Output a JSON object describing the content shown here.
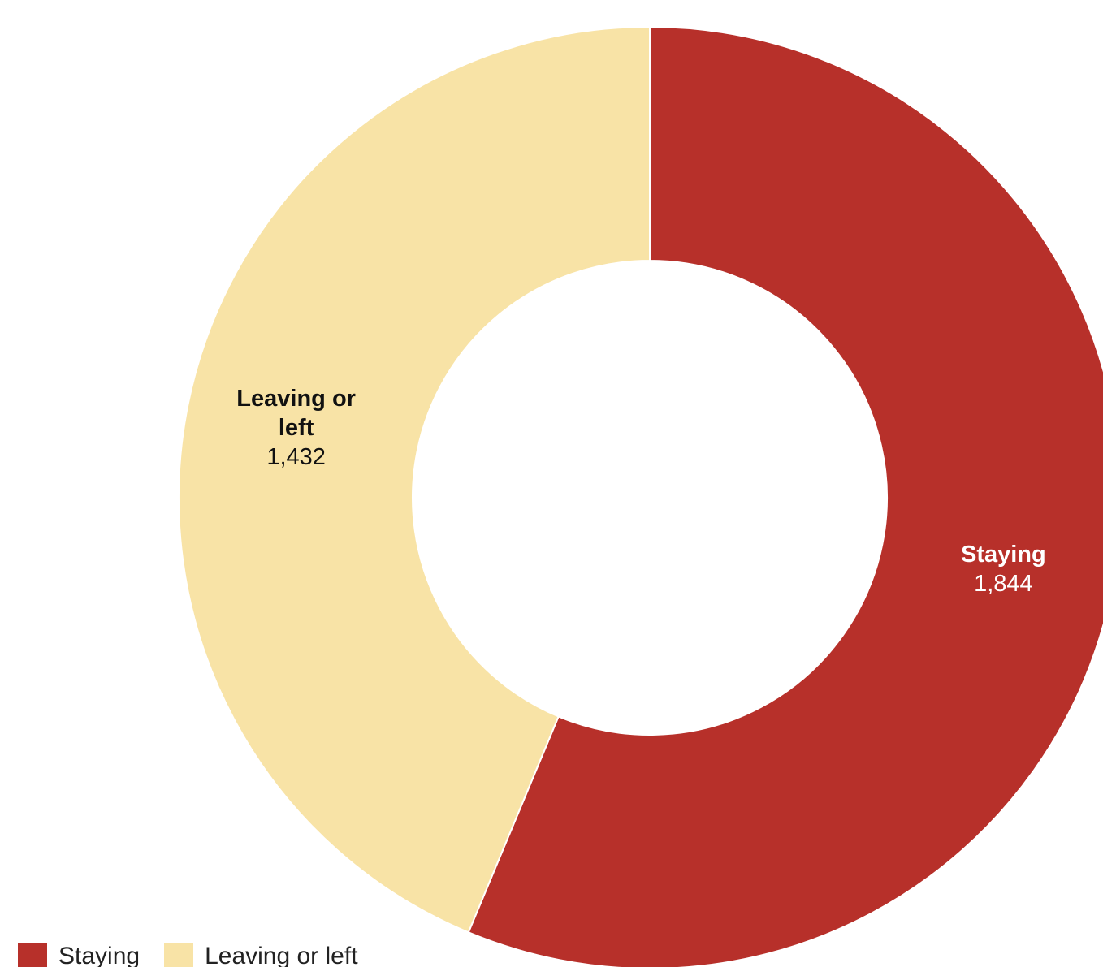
{
  "chart_data": {
    "type": "pie",
    "style": "donut",
    "title": "",
    "slices": [
      {
        "label": "Staying",
        "value": 1844,
        "value_label": "1,844",
        "color": "#b7302a",
        "label_color": "#ffffff"
      },
      {
        "label": "Leaving or left",
        "value": 1432,
        "value_label": "1,432",
        "color": "#f8e3a6",
        "label_color": "#111111"
      }
    ],
    "inner_label_lines": {
      "staying": [
        "Staying"
      ],
      "leaving": [
        "Leaving or",
        "left"
      ]
    },
    "start_angle": "top",
    "direction": "clockwise",
    "legend": {
      "position": "bottom-left",
      "items": [
        {
          "label": "Staying",
          "color": "#b7302a"
        },
        {
          "label": "Leaving or left",
          "color": "#f8e3a6"
        }
      ]
    }
  }
}
